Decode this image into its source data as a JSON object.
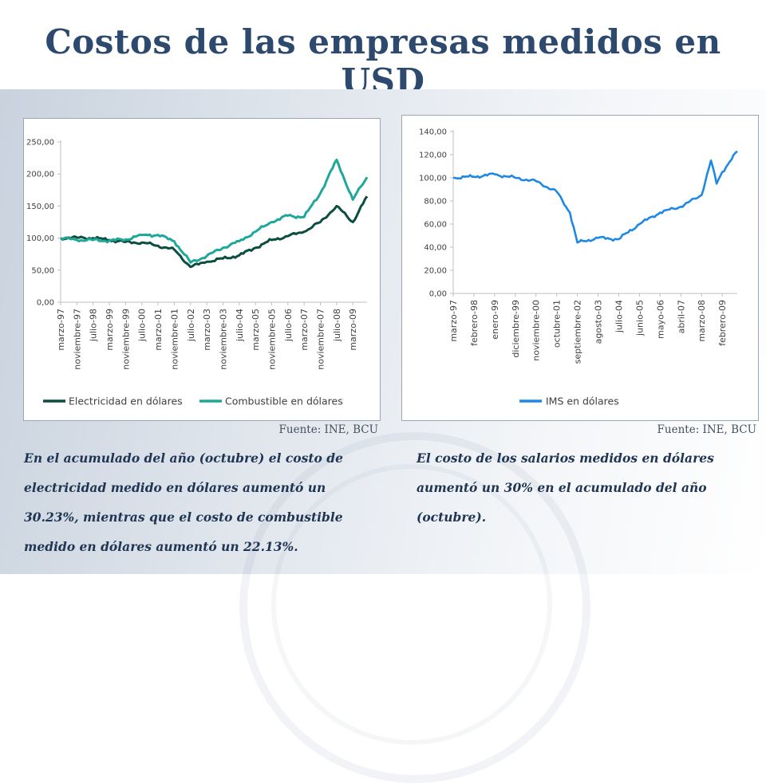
{
  "slide": {
    "title": "Costos de las empresas medidos en USD",
    "source_left": "Fuente: INE, BCU",
    "source_right": "Fuente: INE, BCU",
    "caption_left": "En el acumulado del año (octubre) el costo de electricidad medido en dólares aumentó un 30.23%, mientras que el costo de combustible medido en dólares aumentó un 22.13%.",
    "caption_right": "El costo de los salarios medidos en dólares aumentó un 30% en el acumulado del año (octubre).",
    "colors": {
      "title": "#2d4a6e",
      "electricidad": "#0b4d3e",
      "combustible": "#1fa79a",
      "ims": "#1e88e5"
    }
  },
  "chart_data": [
    {
      "type": "line",
      "y_tick_labels": [
        "0,00",
        "50,00",
        "100,00",
        "150,00",
        "200,00",
        "250,00"
      ],
      "ylim": [
        0,
        250
      ],
      "grid": false,
      "legend": "bottom",
      "x_tick_labels": [
        "marzo-97",
        "noviembre-97",
        "julio-98",
        "marzo-99",
        "noviembre-99",
        "julio-00",
        "marzo-01",
        "noviembre-01",
        "julio-02",
        "marzo-03",
        "noviembre-03",
        "julio-04",
        "marzo-05",
        "noviembre-05",
        "julio-06",
        "marzo-07",
        "noviembre-07",
        "julio-08",
        "marzo-09"
      ],
      "x_anchor": "marzo-97",
      "x_step_months": 1,
      "series": [
        {
          "name": "Electricidad en dólares",
          "color": "#0b4d3e",
          "anchors": [
            [
              "marzo-97",
              100
            ],
            [
              "noviembre-97",
              101
            ],
            [
              "julio-98",
              100
            ],
            [
              "marzo-99",
              97
            ],
            [
              "noviembre-99",
              94
            ],
            [
              "julio-00",
              93
            ],
            [
              "marzo-01",
              88
            ],
            [
              "noviembre-01",
              82
            ],
            [
              "julio-02",
              55
            ],
            [
              "marzo-03",
              63
            ],
            [
              "noviembre-03",
              68
            ],
            [
              "julio-04",
              73
            ],
            [
              "marzo-05",
              85
            ],
            [
              "noviembre-05",
              97
            ],
            [
              "julio-06",
              103
            ],
            [
              "marzo-07",
              110
            ],
            [
              "noviembre-07",
              125
            ],
            [
              "julio-08",
              150
            ],
            [
              "marzo-09",
              125
            ],
            [
              "octubre-09",
              165
            ]
          ]
        },
        {
          "name": "Combustible en dólares",
          "color": "#1fa79a",
          "anchors": [
            [
              "marzo-97",
              100
            ],
            [
              "noviembre-97",
              97
            ],
            [
              "julio-98",
              97
            ],
            [
              "marzo-99",
              96
            ],
            [
              "noviembre-99",
              98
            ],
            [
              "julio-00",
              105
            ],
            [
              "marzo-01",
              105
            ],
            [
              "noviembre-01",
              95
            ],
            [
              "julio-02",
              62
            ],
            [
              "marzo-03",
              72
            ],
            [
              "noviembre-03",
              85
            ],
            [
              "julio-04",
              95
            ],
            [
              "marzo-05",
              110
            ],
            [
              "noviembre-05",
              125
            ],
            [
              "julio-06",
              135
            ],
            [
              "marzo-07",
              133
            ],
            [
              "noviembre-07",
              170
            ],
            [
              "julio-08",
              222
            ],
            [
              "marzo-09",
              160
            ],
            [
              "octubre-09",
              195
            ]
          ]
        }
      ]
    },
    {
      "type": "line",
      "y_tick_labels": [
        "0,00",
        "20,00",
        "40,00",
        "60,00",
        "80,00",
        "100,00",
        "120,00",
        "140,00"
      ],
      "ylim": [
        0,
        140
      ],
      "grid": false,
      "legend": "bottom",
      "x_tick_labels": [
        "marzo-97",
        "febrero-98",
        "enero-99",
        "diciembre-99",
        "noviembre-00",
        "octubre-01",
        "septiembre-02",
        "agosto-03",
        "julio-04",
        "junio-05",
        "mayo-06",
        "abril-07",
        "marzo-08",
        "febrero-09"
      ],
      "x_anchor": "marzo-97",
      "x_step_months": 1,
      "series": [
        {
          "name": "IMS en dólares",
          "color": "#1e88e5",
          "anchors": [
            [
              "marzo-97",
              100
            ],
            [
              "febrero-98",
              101
            ],
            [
              "enero-99",
              103
            ],
            [
              "diciembre-99",
              100
            ],
            [
              "noviembre-00",
              97
            ],
            [
              "octubre-01",
              88
            ],
            [
              "mayo-02",
              70
            ],
            [
              "septiembre-02",
              44
            ],
            [
              "agosto-03",
              48
            ],
            [
              "julio-04",
              47
            ],
            [
              "junio-05",
              60
            ],
            [
              "mayo-06",
              70
            ],
            [
              "abril-07",
              75
            ],
            [
              "marzo-08",
              85
            ],
            [
              "agosto-08",
              115
            ],
            [
              "noviembre-08",
              95
            ],
            [
              "febrero-09",
              105
            ],
            [
              "octubre-09",
              123
            ]
          ]
        }
      ]
    }
  ]
}
